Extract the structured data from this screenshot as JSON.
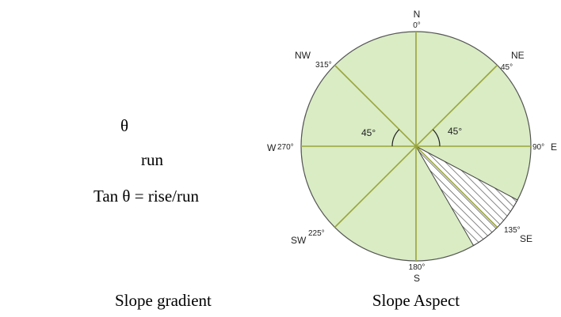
{
  "gradient": {
    "theta": "θ",
    "run": "run",
    "formula": "Tan θ = rise/run",
    "caption": "Slope gradient"
  },
  "aspect": {
    "caption": "Slope Aspect",
    "north": {
      "name": "N",
      "degree": "0°"
    },
    "northeast": {
      "name": "NE",
      "degree": "45°"
    },
    "east": {
      "name": "E",
      "degree": "90°"
    },
    "southeast": {
      "name": "SE",
      "degree": "135°"
    },
    "south": {
      "name": "S",
      "degree": "180°"
    },
    "southwest": {
      "name": "SW",
      "degree": "225°"
    },
    "west": {
      "name": "W",
      "degree": "270°"
    },
    "northwest": {
      "name": "NW",
      "degree": "315°"
    },
    "angle_marks": [
      "45°",
      "45°"
    ]
  }
}
